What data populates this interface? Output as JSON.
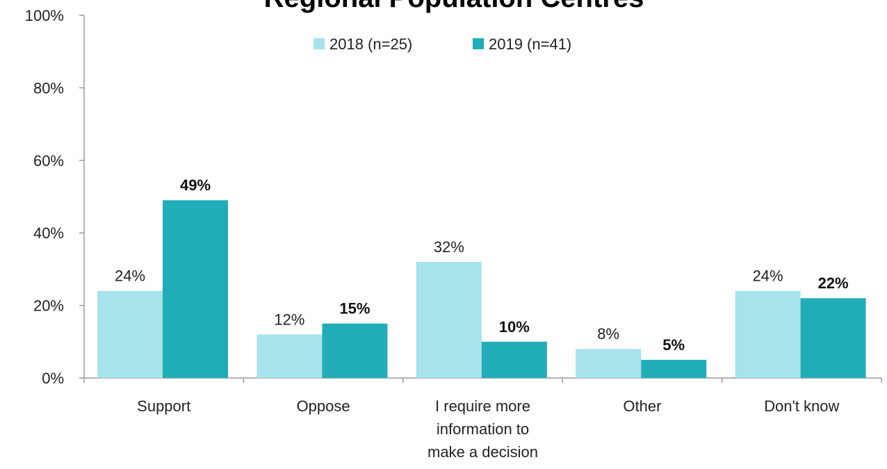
{
  "chart_data": {
    "type": "bar",
    "title": "Regional Population Centres",
    "categories": [
      [
        "Support"
      ],
      [
        "Oppose"
      ],
      [
        "I require more",
        "information to",
        "make a decision"
      ],
      [
        "Other"
      ],
      [
        "Don't know"
      ]
    ],
    "series": [
      {
        "name": "2018 (n=25)",
        "color": "#A6E3EA",
        "values": [
          24,
          12,
          32,
          8,
          24
        ],
        "labels": [
          "24%",
          "12%",
          "32%",
          "8%",
          "24%"
        ]
      },
      {
        "name": "2019 (n=41)",
        "color": "#21ADB8",
        "values": [
          49,
          15,
          10,
          5,
          22
        ],
        "labels": [
          "49%",
          "15%",
          "10%",
          "5%",
          "22%"
        ]
      }
    ],
    "y_ticks": [
      "0%",
      "20%",
      "40%",
      "60%",
      "80%",
      "100%"
    ],
    "ylim": [
      0,
      100
    ],
    "grid": false,
    "legend_position": "top-center"
  }
}
